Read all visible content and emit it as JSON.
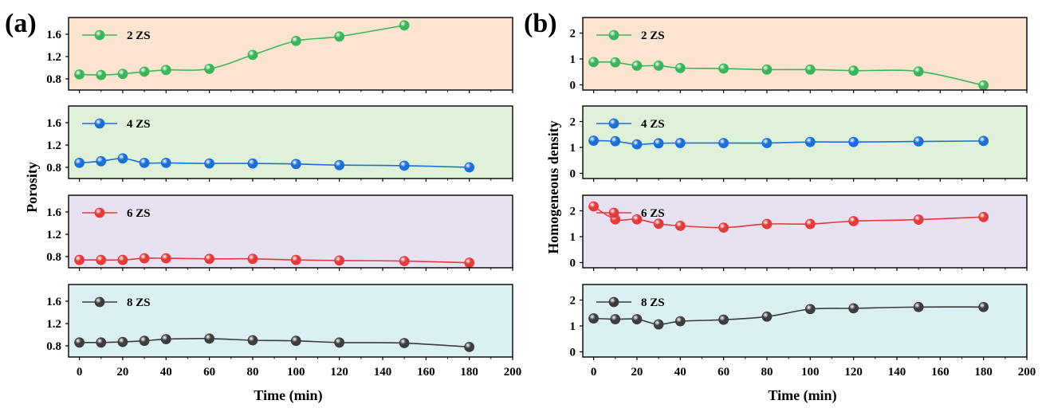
{
  "chart_data": [
    {
      "type": "line",
      "panel_label": "(a)",
      "xlabel": "Time (min)",
      "ylabel": "Porosity",
      "xlim": [
        -5,
        200
      ],
      "xticks": [
        0,
        20,
        40,
        60,
        80,
        100,
        120,
        140,
        160,
        180,
        200
      ],
      "subplots": [
        {
          "name": "2 ZS",
          "color": "#3cb55a",
          "bg": "#fbe5d1",
          "ylim": [
            0.6,
            1.9
          ],
          "yticks": [
            "0.8",
            "1.2",
            "1.6"
          ],
          "x": [
            0,
            10,
            20,
            30,
            40,
            60,
            80,
            100,
            120,
            150
          ],
          "values": [
            0.88,
            0.87,
            0.89,
            0.93,
            0.96,
            0.98,
            1.23,
            1.48,
            1.56,
            1.76
          ]
        },
        {
          "name": "4 ZS",
          "color": "#1d6fd6",
          "bg": "#dff1d8",
          "ylim": [
            0.6,
            1.9
          ],
          "yticks": [
            "0.8",
            "1.2",
            "1.6"
          ],
          "x": [
            0,
            10,
            20,
            30,
            40,
            60,
            80,
            100,
            120,
            150,
            180
          ],
          "values": [
            0.88,
            0.91,
            0.96,
            0.88,
            0.88,
            0.87,
            0.87,
            0.86,
            0.84,
            0.83,
            0.8
          ]
        },
        {
          "name": "6 ZS",
          "color": "#e23b3b",
          "bg": "#e8e1f1",
          "ylim": [
            0.6,
            1.9
          ],
          "yticks": [
            "0.8",
            "1.2",
            "1.6"
          ],
          "x": [
            0,
            10,
            20,
            30,
            40,
            60,
            80,
            100,
            120,
            150,
            180
          ],
          "values": [
            0.74,
            0.74,
            0.74,
            0.77,
            0.77,
            0.76,
            0.76,
            0.74,
            0.73,
            0.72,
            0.69
          ]
        },
        {
          "name": "8 ZS",
          "color": "#3d3d3d",
          "bg": "#dbf0f2",
          "ylim": [
            0.6,
            1.9
          ],
          "yticks": [
            "0.8",
            "1.2",
            "1.6"
          ],
          "x": [
            0,
            10,
            20,
            30,
            40,
            60,
            80,
            100,
            120,
            150,
            180
          ],
          "values": [
            0.86,
            0.86,
            0.87,
            0.89,
            0.92,
            0.93,
            0.9,
            0.89,
            0.86,
            0.85,
            0.78
          ]
        }
      ]
    },
    {
      "type": "line",
      "panel_label": "(b)",
      "xlabel": "Time (min)",
      "ylabel": "Homogeneous density",
      "xlim": [
        -5,
        200
      ],
      "xticks": [
        0,
        20,
        40,
        60,
        80,
        100,
        120,
        140,
        160,
        180,
        200
      ],
      "subplots": [
        {
          "name": "2 ZS",
          "color": "#3cb55a",
          "bg": "#fbe5d1",
          "ylim": [
            -0.2,
            2.6
          ],
          "yticks": [
            "0",
            "1",
            "2"
          ],
          "x": [
            0,
            10,
            20,
            30,
            40,
            60,
            80,
            100,
            120,
            150,
            180
          ],
          "values": [
            0.88,
            0.87,
            0.74,
            0.74,
            0.65,
            0.63,
            0.59,
            0.59,
            0.55,
            0.52,
            -0.02
          ]
        },
        {
          "name": "4 ZS",
          "color": "#1d6fd6",
          "bg": "#dff1d8",
          "ylim": [
            -0.2,
            2.6
          ],
          "yticks": [
            "0",
            "1",
            "2"
          ],
          "x": [
            0,
            10,
            20,
            30,
            40,
            60,
            80,
            100,
            120,
            150,
            180
          ],
          "values": [
            1.26,
            1.24,
            1.12,
            1.16,
            1.17,
            1.17,
            1.17,
            1.21,
            1.21,
            1.23,
            1.25
          ]
        },
        {
          "name": "6 ZS",
          "color": "#e23b3b",
          "bg": "#e8e1f1",
          "ylim": [
            -0.2,
            2.6
          ],
          "yticks": [
            "0",
            "1",
            "2"
          ],
          "x": [
            0,
            10,
            20,
            30,
            40,
            60,
            80,
            100,
            120,
            150,
            180
          ],
          "values": [
            2.17,
            1.67,
            1.67,
            1.5,
            1.42,
            1.35,
            1.49,
            1.49,
            1.6,
            1.66,
            1.76
          ]
        },
        {
          "name": "8 ZS",
          "color": "#3d3d3d",
          "bg": "#dbf0f2",
          "ylim": [
            -0.2,
            2.6
          ],
          "yticks": [
            "0",
            "1",
            "2"
          ],
          "x": [
            0,
            10,
            20,
            30,
            40,
            60,
            80,
            100,
            120,
            150,
            180
          ],
          "values": [
            1.29,
            1.26,
            1.26,
            1.06,
            1.18,
            1.24,
            1.36,
            1.65,
            1.68,
            1.73,
            1.73
          ]
        }
      ]
    }
  ]
}
